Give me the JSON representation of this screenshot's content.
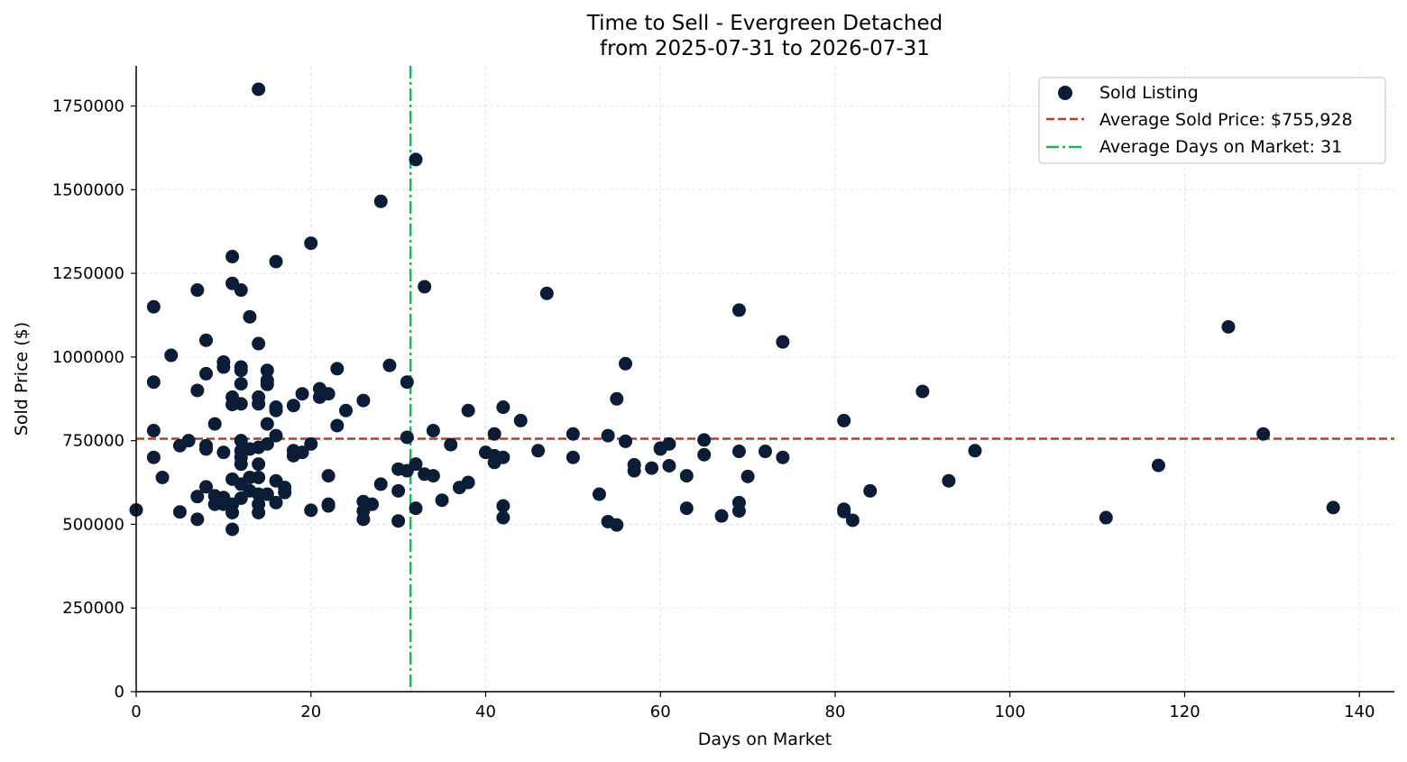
{
  "chart_data": {
    "type": "scatter",
    "title": "Time to Sell - Evergreen Detached",
    "subtitle": "from 2025-07-31 to 2026-07-31",
    "xlabel": "Days on Market",
    "ylabel": "Sold Price ($)",
    "xlim": [
      0,
      144
    ],
    "ylim": [
      0,
      1870000
    ],
    "xticks": [
      0,
      20,
      40,
      60,
      80,
      100,
      120,
      140
    ],
    "yticks": [
      0,
      250000,
      500000,
      750000,
      1000000,
      1250000,
      1500000,
      1750000
    ],
    "grid": true,
    "legend_position": "top-right",
    "colors": {
      "points": "#0b1d36",
      "avg_price_line": "#c0392b",
      "avg_days_line": "#27ae60",
      "grid": "#dddddd",
      "axis": "#000000"
    },
    "series": [
      {
        "name": "Sold Listing",
        "points": [
          [
            0,
            543000
          ],
          [
            2,
            1150000
          ],
          [
            2,
            925000
          ],
          [
            2,
            780000
          ],
          [
            2,
            700000
          ],
          [
            3,
            640000
          ],
          [
            4,
            1005000
          ],
          [
            5,
            735000
          ],
          [
            5,
            537000
          ],
          [
            6,
            750000
          ],
          [
            7,
            1200000
          ],
          [
            7,
            900000
          ],
          [
            7,
            583000
          ],
          [
            7,
            515000
          ],
          [
            8,
            1050000
          ],
          [
            8,
            950000
          ],
          [
            8,
            735000
          ],
          [
            8,
            725000
          ],
          [
            8,
            612000
          ],
          [
            9,
            800000
          ],
          [
            9,
            585000
          ],
          [
            9,
            560000
          ],
          [
            10,
            985000
          ],
          [
            10,
            970000
          ],
          [
            10,
            715000
          ],
          [
            10,
            580000
          ],
          [
            10,
            560000
          ],
          [
            11,
            1300000
          ],
          [
            11,
            1220000
          ],
          [
            11,
            880000
          ],
          [
            11,
            858000
          ],
          [
            11,
            635000
          ],
          [
            11,
            560000
          ],
          [
            11,
            535000
          ],
          [
            11,
            485000
          ],
          [
            12,
            1200000
          ],
          [
            12,
            970000
          ],
          [
            12,
            960000
          ],
          [
            12,
            920000
          ],
          [
            12,
            860000
          ],
          [
            12,
            750000
          ],
          [
            12,
            720000
          ],
          [
            12,
            700000
          ],
          [
            12,
            680000
          ],
          [
            12,
            620000
          ],
          [
            12,
            578000
          ],
          [
            13,
            1120000
          ],
          [
            13,
            725000
          ],
          [
            13,
            640000
          ],
          [
            13,
            600000
          ],
          [
            14,
            1800000
          ],
          [
            14,
            1040000
          ],
          [
            14,
            880000
          ],
          [
            14,
            860000
          ],
          [
            14,
            730000
          ],
          [
            14,
            680000
          ],
          [
            14,
            640000
          ],
          [
            14,
            590000
          ],
          [
            14,
            560000
          ],
          [
            14,
            535000
          ],
          [
            15,
            960000
          ],
          [
            15,
            930000
          ],
          [
            15,
            918000
          ],
          [
            15,
            800000
          ],
          [
            15,
            740000
          ],
          [
            15,
            590000
          ],
          [
            16,
            1285000
          ],
          [
            16,
            850000
          ],
          [
            16,
            840000
          ],
          [
            16,
            765000
          ],
          [
            16,
            630000
          ],
          [
            16,
            565000
          ],
          [
            17,
            610000
          ],
          [
            17,
            595000
          ],
          [
            18,
            855000
          ],
          [
            18,
            720000
          ],
          [
            18,
            705000
          ],
          [
            19,
            890000
          ],
          [
            19,
            715000
          ],
          [
            20,
            1340000
          ],
          [
            20,
            740000
          ],
          [
            20,
            542000
          ],
          [
            21,
            905000
          ],
          [
            21,
            880000
          ],
          [
            22,
            890000
          ],
          [
            22,
            645000
          ],
          [
            22,
            560000
          ],
          [
            22,
            555000
          ],
          [
            23,
            965000
          ],
          [
            23,
            795000
          ],
          [
            24,
            840000
          ],
          [
            26,
            870000
          ],
          [
            26,
            568000
          ],
          [
            26,
            540000
          ],
          [
            26,
            515000
          ],
          [
            27,
            560000
          ],
          [
            28,
            1465000
          ],
          [
            28,
            620000
          ],
          [
            29,
            975000
          ],
          [
            30,
            665000
          ],
          [
            30,
            600000
          ],
          [
            30,
            510000
          ],
          [
            31,
            925000
          ],
          [
            31,
            760000
          ],
          [
            31,
            660000
          ],
          [
            32,
            1590000
          ],
          [
            32,
            680000
          ],
          [
            32,
            548000
          ],
          [
            33,
            1210000
          ],
          [
            33,
            650000
          ],
          [
            34,
            780000
          ],
          [
            34,
            645000
          ],
          [
            35,
            572000
          ],
          [
            36,
            738000
          ],
          [
            37,
            610000
          ],
          [
            38,
            840000
          ],
          [
            38,
            625000
          ],
          [
            40,
            715000
          ],
          [
            41,
            770000
          ],
          [
            41,
            705000
          ],
          [
            41,
            685000
          ],
          [
            42,
            850000
          ],
          [
            42,
            700000
          ],
          [
            42,
            555000
          ],
          [
            42,
            520000
          ],
          [
            44,
            810000
          ],
          [
            46,
            720000
          ],
          [
            47,
            1190000
          ],
          [
            50,
            770000
          ],
          [
            50,
            700000
          ],
          [
            53,
            590000
          ],
          [
            54,
            765000
          ],
          [
            54,
            508000
          ],
          [
            55,
            875000
          ],
          [
            55,
            498000
          ],
          [
            56,
            980000
          ],
          [
            56,
            748000
          ],
          [
            57,
            678000
          ],
          [
            57,
            660000
          ],
          [
            59,
            668000
          ],
          [
            60,
            728000
          ],
          [
            60,
            725000
          ],
          [
            61,
            740000
          ],
          [
            61,
            675000
          ],
          [
            63,
            645000
          ],
          [
            63,
            548000
          ],
          [
            65,
            752000
          ],
          [
            65,
            708000
          ],
          [
            67,
            525000
          ],
          [
            69,
            1140000
          ],
          [
            69,
            718000
          ],
          [
            69,
            565000
          ],
          [
            69,
            540000
          ],
          [
            70,
            643000
          ],
          [
            72,
            718000
          ],
          [
            74,
            1045000
          ],
          [
            74,
            700000
          ],
          [
            81,
            810000
          ],
          [
            81,
            545000
          ],
          [
            81,
            538000
          ],
          [
            82,
            512000
          ],
          [
            84,
            600000
          ],
          [
            90,
            897000
          ],
          [
            93,
            630000
          ],
          [
            96,
            720000
          ],
          [
            111,
            520000
          ],
          [
            117,
            676000
          ],
          [
            125,
            1090000
          ],
          [
            129,
            770000
          ],
          [
            137,
            550000
          ]
        ]
      }
    ],
    "reference_lines": [
      {
        "name": "Average Sold Price: $755,928",
        "orientation": "horizontal",
        "value": 755928,
        "style": "dashed"
      },
      {
        "name": "Average Days on Market: 31",
        "orientation": "vertical",
        "value": 31.4,
        "style": "dashdot"
      }
    ],
    "legend": [
      {
        "label": "Sold Listing",
        "marker": "circle"
      },
      {
        "label": "Average Sold Price: $755,928",
        "marker": "dashed-line"
      },
      {
        "label": "Average Days on Market: 31",
        "marker": "dashdot-line"
      }
    ]
  }
}
